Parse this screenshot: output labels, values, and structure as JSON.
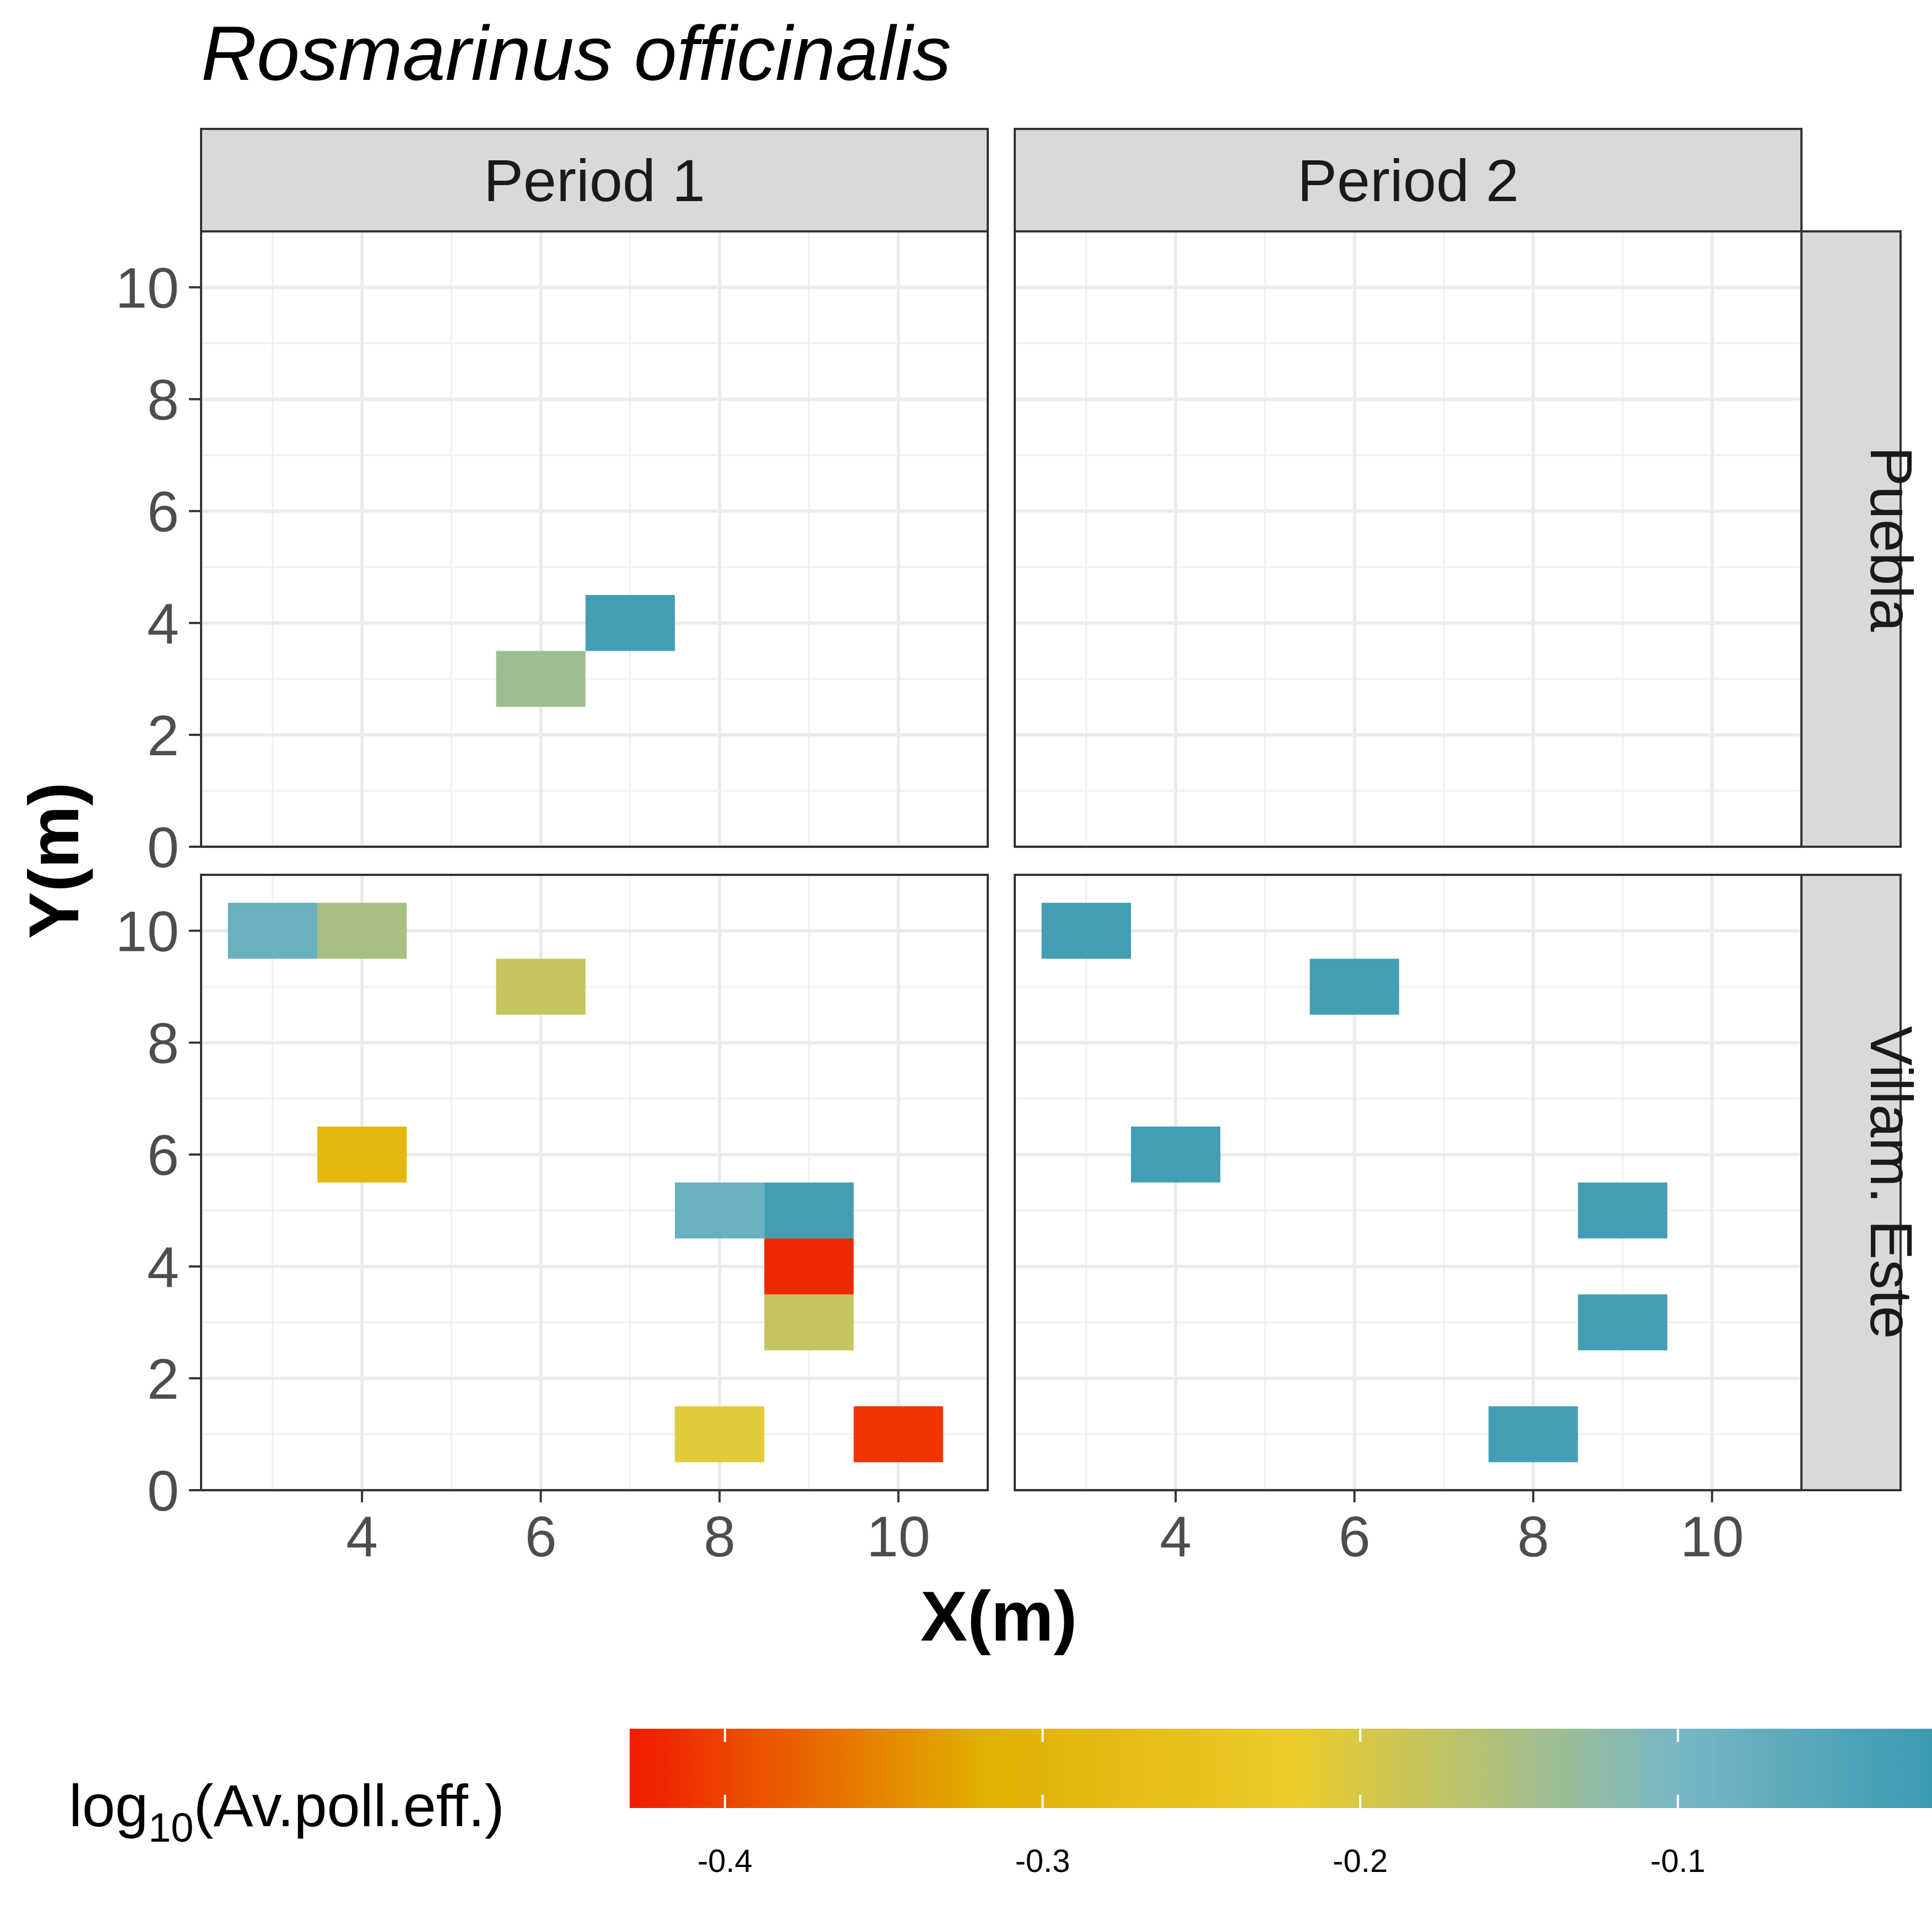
{
  "chart_data": {
    "type": "heatmap",
    "title": "Rosmarinus officinalis",
    "xlabel": "X(m)",
    "ylabel": "Y(m)",
    "xlim": [
      2.2,
      11.0
    ],
    "ylim": [
      0,
      11.0
    ],
    "x_ticks": [
      4,
      6,
      8,
      10
    ],
    "y_ticks": [
      0,
      2,
      4,
      6,
      8,
      10
    ],
    "grid": true,
    "tile_size": {
      "w": 1,
      "h": 1
    },
    "columns": [
      "Period 1",
      "Period 2"
    ],
    "rows": [
      "Puebla",
      "Villam. Este"
    ],
    "panels": [
      {
        "column": "Period 1",
        "row": "Puebla",
        "tiles": [
          {
            "x": 7,
            "y": 4,
            "value": -0.03
          },
          {
            "x": 6,
            "y": 3,
            "value": -0.14
          }
        ]
      },
      {
        "column": "Period 2",
        "row": "Puebla",
        "tiles": []
      },
      {
        "column": "Period 1",
        "row": "Villam. Este",
        "tiles": [
          {
            "x": 3,
            "y": 10,
            "value": -0.08
          },
          {
            "x": 4,
            "y": 10,
            "value": -0.15
          },
          {
            "x": 6,
            "y": 9,
            "value": -0.18
          },
          {
            "x": 4,
            "y": 6,
            "value": -0.29
          },
          {
            "x": 8,
            "y": 5,
            "value": -0.08
          },
          {
            "x": 9,
            "y": 5,
            "value": -0.03
          },
          {
            "x": 9,
            "y": 4,
            "value": -0.42
          },
          {
            "x": 9,
            "y": 3,
            "value": -0.18
          },
          {
            "x": 8,
            "y": 1,
            "value": -0.21
          },
          {
            "x": 10,
            "y": 1,
            "value": -0.41
          }
        ]
      },
      {
        "column": "Period 2",
        "row": "Villam. Este",
        "tiles": [
          {
            "x": 3,
            "y": 10,
            "value": -0.03
          },
          {
            "x": 6,
            "y": 9,
            "value": -0.03
          },
          {
            "x": 4,
            "y": 6,
            "value": -0.03
          },
          {
            "x": 9,
            "y": 5,
            "value": -0.03
          },
          {
            "x": 9,
            "y": 3,
            "value": -0.03
          },
          {
            "x": 8,
            "y": 1,
            "value": -0.03
          }
        ]
      }
    ],
    "legend": {
      "title_main": "log",
      "title_sub": "10",
      "title_rest": "(Av.poll.eff.)",
      "placement": "bottom",
      "range": [
        -0.43,
        -0.02
      ],
      "ticks": [
        -0.4,
        -0.3,
        -0.2,
        -0.1
      ],
      "tick_labels": [
        "-0.4",
        "-0.3",
        "-0.2",
        "-0.1"
      ],
      "color_stops": [
        {
          "value": -0.43,
          "color": "#F21A00"
        },
        {
          "value": -0.32,
          "color": "#E1AF00"
        },
        {
          "value": -0.22,
          "color": "#EBCC2A"
        },
        {
          "value": -0.1,
          "color": "#78B7C5"
        },
        {
          "value": -0.02,
          "color": "#3B9AB2"
        }
      ]
    }
  }
}
